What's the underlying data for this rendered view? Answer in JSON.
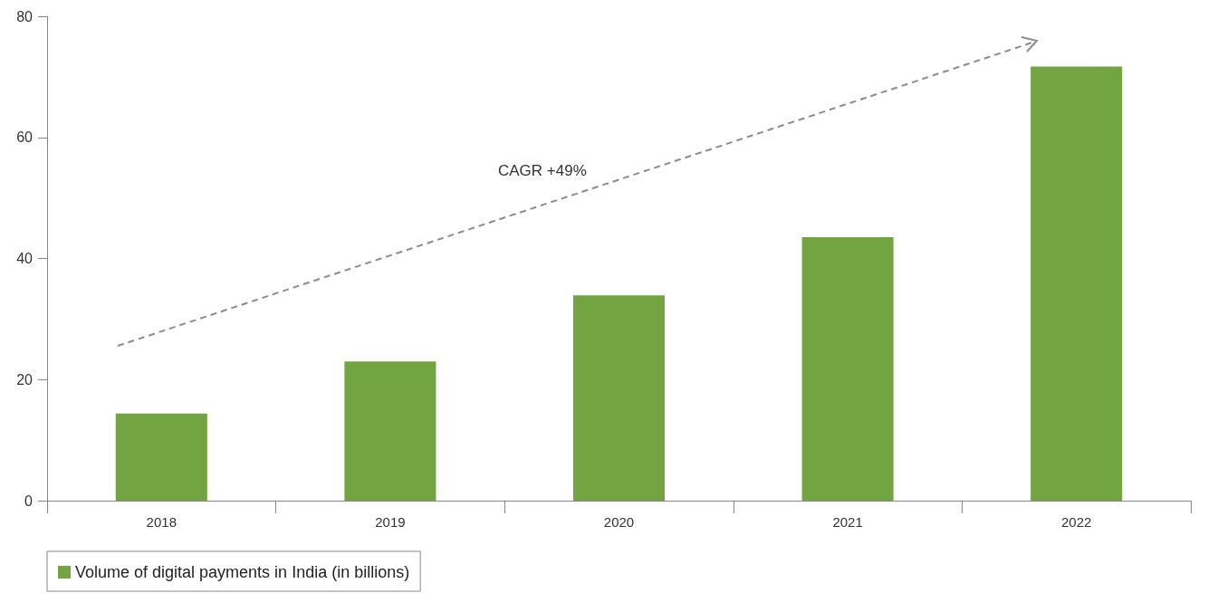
{
  "chart_data": {
    "type": "bar",
    "categories": [
      "2018",
      "2019",
      "2020",
      "2021",
      "2022"
    ],
    "series": [
      {
        "name": "Volume of digital payments in India (in billions)",
        "color": "#72a542",
        "values": [
          14.4,
          23.0,
          33.9,
          43.5,
          71.7
        ]
      }
    ],
    "ylim": [
      0,
      80
    ],
    "yticks": [
      0,
      20,
      40,
      60,
      80
    ],
    "grid": false,
    "legend": "bottom left",
    "annotations": [
      "CAGR +49%"
    ]
  }
}
